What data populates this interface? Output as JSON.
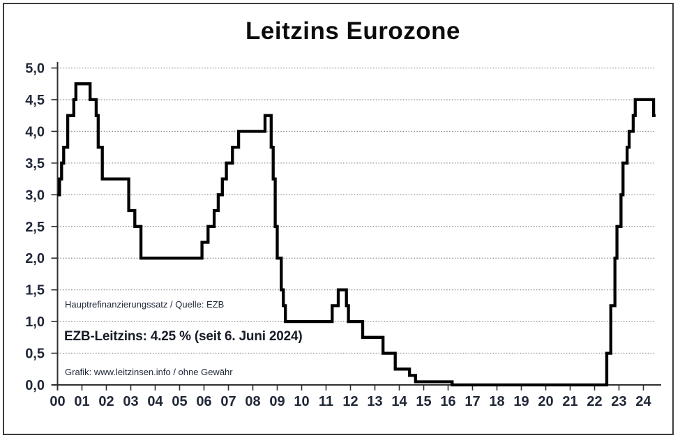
{
  "title": "Leitzins Eurozone",
  "annotations": {
    "source_note": "Hauptrefinanzierungssatz / Quelle: EZB",
    "current_rate": "EZB-Leitzins: 4.25 % (seit 6. Juni 2024)",
    "credit_note": "Grafik: www.leitzinsen.info / ohne Gewähr"
  },
  "colors": {
    "line": "#000000",
    "axis": "#2f2f2f",
    "grid": "#8a8a8a",
    "tick_text": "#212838",
    "title_text": "#0b0b0b"
  },
  "chart_data": {
    "type": "line",
    "step": true,
    "title": "Leitzins Eurozone",
    "xlabel": "",
    "ylabel": "",
    "ylim": [
      0.0,
      5.0
    ],
    "y_tick_step": 0.5,
    "y_tick_labels": [
      "5,0",
      "4,5",
      "4,0",
      "3,5",
      "3,0",
      "2,5",
      "2,0",
      "1,5",
      "1,0",
      "0,5",
      "0,0"
    ],
    "x_tick_labels": [
      "00",
      "01",
      "02",
      "03",
      "04",
      "05",
      "06",
      "07",
      "08",
      "09",
      "10",
      "11",
      "12",
      "13",
      "14",
      "15",
      "16",
      "17",
      "18",
      "19",
      "20",
      "21",
      "22",
      "23",
      "24"
    ],
    "x_start": "2000-01",
    "x_end": "2024-07",
    "grid": "horizontal-dotted",
    "legend": "none",
    "series": [
      {
        "name": "EZB Hauptrefinanzierungssatz",
        "points": [
          [
            "2000-01",
            3.0
          ],
          [
            "2000-02",
            3.25
          ],
          [
            "2000-03",
            3.5
          ],
          [
            "2000-04",
            3.75
          ],
          [
            "2000-06",
            4.25
          ],
          [
            "2000-09",
            4.5
          ],
          [
            "2000-10",
            4.75
          ],
          [
            "2001-05",
            4.5
          ],
          [
            "2001-08",
            4.25
          ],
          [
            "2001-09",
            3.75
          ],
          [
            "2001-11",
            3.25
          ],
          [
            "2002-12",
            2.75
          ],
          [
            "2003-03",
            2.5
          ],
          [
            "2003-06",
            2.0
          ],
          [
            "2005-12",
            2.25
          ],
          [
            "2006-03",
            2.5
          ],
          [
            "2006-06",
            2.75
          ],
          [
            "2006-08",
            3.0
          ],
          [
            "2006-10",
            3.25
          ],
          [
            "2006-12",
            3.5
          ],
          [
            "2007-03",
            3.75
          ],
          [
            "2007-06",
            4.0
          ],
          [
            "2008-07",
            4.25
          ],
          [
            "2008-10",
            3.75
          ],
          [
            "2008-11",
            3.25
          ],
          [
            "2008-12",
            2.5
          ],
          [
            "2009-01",
            2.0
          ],
          [
            "2009-03",
            1.5
          ],
          [
            "2009-04",
            1.25
          ],
          [
            "2009-05",
            1.0
          ],
          [
            "2011-04",
            1.25
          ],
          [
            "2011-07",
            1.5
          ],
          [
            "2011-11",
            1.25
          ],
          [
            "2011-12",
            1.0
          ],
          [
            "2012-07",
            0.75
          ],
          [
            "2013-05",
            0.5
          ],
          [
            "2013-11",
            0.25
          ],
          [
            "2014-06",
            0.15
          ],
          [
            "2014-09",
            0.05
          ],
          [
            "2016-03",
            0.0
          ],
          [
            "2022-07",
            0.5
          ],
          [
            "2022-09",
            1.25
          ],
          [
            "2022-11",
            2.0
          ],
          [
            "2022-12",
            2.5
          ],
          [
            "2023-02",
            3.0
          ],
          [
            "2023-03",
            3.5
          ],
          [
            "2023-05",
            3.75
          ],
          [
            "2023-06",
            4.0
          ],
          [
            "2023-08",
            4.25
          ],
          [
            "2023-09",
            4.5
          ],
          [
            "2024-06",
            4.25
          ]
        ]
      }
    ]
  }
}
